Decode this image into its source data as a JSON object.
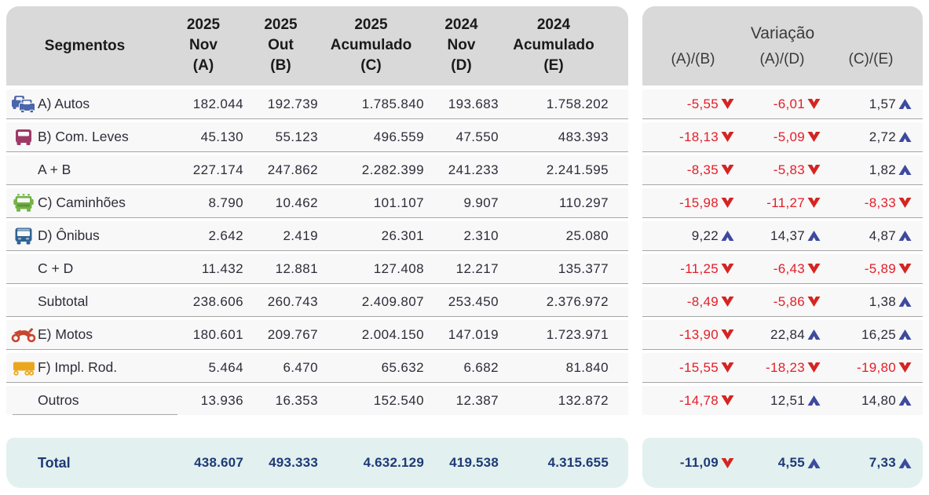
{
  "colors": {
    "header_bg": "#d9d9d9",
    "header_text": "#1a1a1a",
    "row_bg": "#f8f8f8",
    "row_line": "#a6a6a6",
    "body_text": "#2d2d3a",
    "negative": "#e51d28",
    "arrow_down": "#d42522",
    "arrow_up": "#3d4a9e",
    "total_bg": "#e2f1ef",
    "total_text": "#1e3a78",
    "segment_icons": {
      "autos-icon": "#4a66ad",
      "com-leves-icon": "#9d3a68",
      "caminhoes-icon": "#74b347",
      "onibus-icon": "#2e6392",
      "motos-icon": "#c9452f",
      "impl-rod-icon": "#eaa71e"
    }
  },
  "table": {
    "header": {
      "segments_label": "Segmentos",
      "columns": [
        {
          "line1": "2025",
          "line2": "Nov",
          "line3": "(A)"
        },
        {
          "line1": "2025",
          "line2": "Out",
          "line3": "(B)"
        },
        {
          "line1": "2025",
          "line2": "Acumulado",
          "line3": "(C)"
        },
        {
          "line1": "2024",
          "line2": "Nov",
          "line3": "(D)"
        },
        {
          "line1": "2024",
          "line2": "Acumulado",
          "line3": "(E)"
        }
      ]
    },
    "rows": [
      {
        "icon": "autos-icon",
        "label": "A) Autos",
        "values": [
          "182.044",
          "192.739",
          "1.785.840",
          "193.683",
          "1.758.202"
        ]
      },
      {
        "icon": "com-leves-icon",
        "label": "B) Com. Leves",
        "values": [
          "45.130",
          "55.123",
          "496.559",
          "47.550",
          "483.393"
        ]
      },
      {
        "icon": null,
        "label": "A + B",
        "values": [
          "227.174",
          "247.862",
          "2.282.399",
          "241.233",
          "2.241.595"
        ]
      },
      {
        "icon": "caminhoes-icon",
        "label": "C) Caminhões",
        "values": [
          "8.790",
          "10.462",
          "101.107",
          "9.907",
          "110.297"
        ]
      },
      {
        "icon": "onibus-icon",
        "label": "D) Ônibus",
        "values": [
          "2.642",
          "2.419",
          "26.301",
          "2.310",
          "25.080"
        ]
      },
      {
        "icon": null,
        "label": "C + D",
        "values": [
          "11.432",
          "12.881",
          "127.408",
          "12.217",
          "135.377"
        ]
      },
      {
        "icon": null,
        "label": "Subtotal",
        "values": [
          "238.606",
          "260.743",
          "2.409.807",
          "253.450",
          "2.376.972"
        ]
      },
      {
        "icon": "motos-icon",
        "label": "E) Motos",
        "values": [
          "180.601",
          "209.767",
          "2.004.150",
          "147.019",
          "1.723.971"
        ]
      },
      {
        "icon": "impl-rod-icon",
        "label": "F) Impl. Rod.",
        "values": [
          "5.464",
          "6.470",
          "65.632",
          "6.682",
          "81.840"
        ]
      },
      {
        "icon": null,
        "label": "Outros",
        "values": [
          "13.936",
          "16.353",
          "152.540",
          "12.387",
          "132.872"
        ]
      }
    ],
    "total": {
      "label": "Total",
      "values": [
        "438.607",
        "493.333",
        "4.632.129",
        "419.538",
        "4.315.655"
      ]
    }
  },
  "variation": {
    "title": "Variação",
    "columns": [
      "(A)/(B)",
      "(A)/(D)",
      "(C)/(E)"
    ],
    "rows": [
      {
        "cells": [
          {
            "value": "-5,55",
            "direction": "down"
          },
          {
            "value": "-6,01",
            "direction": "down"
          },
          {
            "value": "1,57",
            "direction": "up"
          }
        ]
      },
      {
        "cells": [
          {
            "value": "-18,13",
            "direction": "down"
          },
          {
            "value": "-5,09",
            "direction": "down"
          },
          {
            "value": "2,72",
            "direction": "up"
          }
        ]
      },
      {
        "cells": [
          {
            "value": "-8,35",
            "direction": "down"
          },
          {
            "value": "-5,83",
            "direction": "down"
          },
          {
            "value": "1,82",
            "direction": "up"
          }
        ]
      },
      {
        "cells": [
          {
            "value": "-15,98",
            "direction": "down"
          },
          {
            "value": "-11,27",
            "direction": "down"
          },
          {
            "value": "-8,33",
            "direction": "down"
          }
        ]
      },
      {
        "cells": [
          {
            "value": "9,22",
            "direction": "up"
          },
          {
            "value": "14,37",
            "direction": "up"
          },
          {
            "value": "4,87",
            "direction": "up"
          }
        ]
      },
      {
        "cells": [
          {
            "value": "-11,25",
            "direction": "down"
          },
          {
            "value": "-6,43",
            "direction": "down"
          },
          {
            "value": "-5,89",
            "direction": "down"
          }
        ]
      },
      {
        "cells": [
          {
            "value": "-8,49",
            "direction": "down"
          },
          {
            "value": "-5,86",
            "direction": "down"
          },
          {
            "value": "1,38",
            "direction": "up"
          }
        ]
      },
      {
        "cells": [
          {
            "value": "-13,90",
            "direction": "down"
          },
          {
            "value": "22,84",
            "direction": "up"
          },
          {
            "value": "16,25",
            "direction": "up"
          }
        ]
      },
      {
        "cells": [
          {
            "value": "-15,55",
            "direction": "down"
          },
          {
            "value": "-18,23",
            "direction": "down"
          },
          {
            "value": "-19,80",
            "direction": "down"
          }
        ]
      },
      {
        "cells": [
          {
            "value": "-14,78",
            "direction": "down"
          },
          {
            "value": "12,51",
            "direction": "up"
          },
          {
            "value": "14,80",
            "direction": "up"
          }
        ]
      }
    ],
    "total": {
      "cells": [
        {
          "value": "-11,09",
          "direction": "down"
        },
        {
          "value": "4,55",
          "direction": "up"
        },
        {
          "value": "7,33",
          "direction": "up"
        }
      ]
    }
  }
}
